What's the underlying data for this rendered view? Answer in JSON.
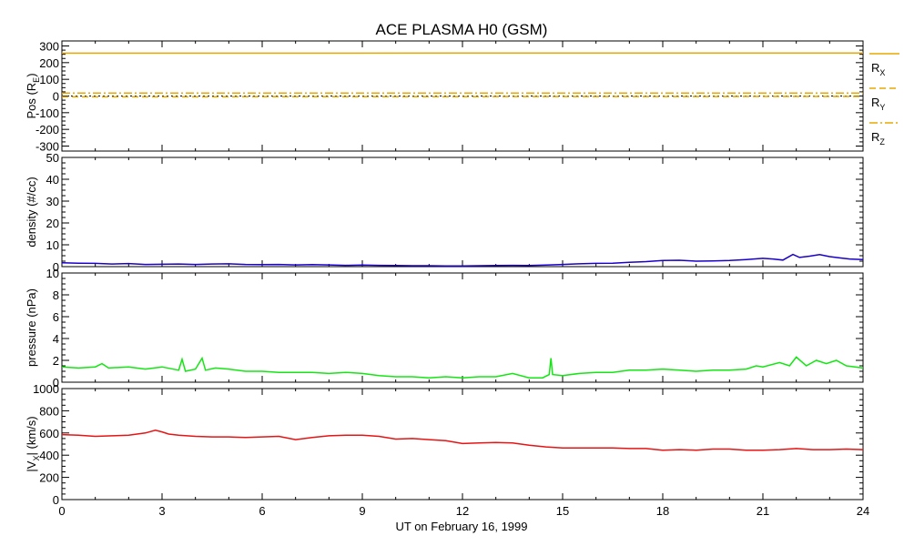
{
  "chart_data": {
    "title": "ACE PLASMA H0 (GSM)",
    "xlabel": "UT on February 16, 1999",
    "x_ticks": [
      "0",
      "3",
      "6",
      "9",
      "12",
      "15",
      "18",
      "21",
      "24"
    ],
    "xlim": [
      0,
      24
    ],
    "panels": [
      {
        "type": "line",
        "ylabel_main": "Pos (R",
        "ylabel_sub": "E",
        "ylabel_end": ")",
        "ylim": [
          -330,
          330
        ],
        "y_ticks": [
          "300",
          "200",
          "100",
          "0",
          "-100",
          "-200",
          "-300"
        ],
        "legend": [
          {
            "main": "R",
            "sub": "X",
            "style": "solid",
            "color": "#e8a800"
          },
          {
            "main": "R",
            "sub": "Y",
            "style": "dashed",
            "color": "#e8a800"
          },
          {
            "main": "R",
            "sub": "Z",
            "style": "dashdot",
            "color": "#e8a800"
          }
        ],
        "series": [
          {
            "name": "X",
            "color": "#e8a800",
            "style": "solid",
            "x": [
              0,
              24
            ],
            "y": [
              257,
              258
            ]
          },
          {
            "name": "Y",
            "color": "#e8a800",
            "style": "dashed",
            "x": [
              0,
              24
            ],
            "y": [
              -5,
              -3
            ]
          },
          {
            "name": "Z",
            "color": "#e8a800",
            "style": "dashdot",
            "x": [
              0,
              24
            ],
            "y": [
              18,
              18
            ]
          }
        ],
        "zero_line": true
      },
      {
        "type": "line",
        "ylabel_main": "density (#/cc)",
        "ylim": [
          0,
          50
        ],
        "y_ticks": [
          "50",
          "40",
          "30",
          "20",
          "10",
          "0"
        ],
        "series": [
          {
            "name": "density",
            "color": "#1a00c8",
            "x": [
              0,
              0.5,
              1,
              1.5,
              2,
              2.5,
              3,
              3.5,
              4,
              4.5,
              5,
              5.5,
              6,
              6.5,
              7,
              7.5,
              8,
              8.5,
              9,
              9.5,
              10,
              10.5,
              11,
              11.5,
              12,
              12.5,
              13,
              13.5,
              14,
              14.5,
              15,
              15.5,
              16,
              16.5,
              17,
              17.5,
              18,
              18.5,
              19,
              19.5,
              20,
              20.5,
              21,
              21.3,
              21.6,
              21.9,
              22.1,
              22.4,
              22.7,
              23,
              23.3,
              23.6,
              24
            ],
            "y": [
              1.8,
              1.6,
              1.5,
              1.2,
              1.4,
              1.0,
              1.1,
              1.2,
              1.0,
              1.2,
              1.3,
              1.0,
              0.9,
              1.0,
              0.8,
              0.9,
              0.8,
              0.6,
              0.7,
              0.6,
              0.5,
              0.4,
              0.4,
              0.3,
              0.3,
              0.4,
              0.5,
              0.6,
              0.5,
              0.7,
              1.0,
              1.3,
              1.5,
              1.6,
              2.0,
              2.3,
              2.8,
              2.9,
              2.5,
              2.6,
              2.8,
              3.2,
              3.8,
              3.5,
              3.0,
              5.6,
              4.2,
              4.8,
              5.5,
              4.6,
              4.0,
              3.5,
              3.2
            ]
          }
        ]
      },
      {
        "type": "line",
        "ylabel_main": "pressure (nPa)",
        "ylim": [
          0,
          10
        ],
        "y_ticks": [
          "10",
          "8",
          "6",
          "4",
          "2",
          "0"
        ],
        "series": [
          {
            "name": "pressure",
            "color": "#14e614",
            "x": [
              0,
              0.5,
              1,
              1.2,
              1.4,
              2,
              2.5,
              3,
              3.5,
              3.6,
              3.7,
              4,
              4.2,
              4.3,
              4.6,
              5,
              5.5,
              6,
              6.5,
              7,
              7.5,
              8,
              8.5,
              9,
              9.5,
              10,
              10.5,
              11,
              11.5,
              12,
              12.5,
              13,
              13.5,
              14,
              14.4,
              14.6,
              14.65,
              14.7,
              15,
              15.5,
              16,
              16.5,
              17,
              17.5,
              18,
              18.5,
              19,
              19.5,
              20,
              20.5,
              20.8,
              21,
              21.5,
              21.8,
              22,
              22.3,
              22.6,
              22.9,
              23.2,
              23.5,
              24
            ],
            "y": [
              1.4,
              1.3,
              1.4,
              1.7,
              1.3,
              1.4,
              1.2,
              1.4,
              1.1,
              2.1,
              1.0,
              1.2,
              2.2,
              1.1,
              1.3,
              1.2,
              1.0,
              1.0,
              0.9,
              0.9,
              0.9,
              0.8,
              0.9,
              0.8,
              0.6,
              0.5,
              0.5,
              0.4,
              0.5,
              0.4,
              0.5,
              0.5,
              0.8,
              0.4,
              0.4,
              0.7,
              2.2,
              0.7,
              0.6,
              0.8,
              0.9,
              0.9,
              1.1,
              1.1,
              1.2,
              1.1,
              1.0,
              1.1,
              1.1,
              1.2,
              1.5,
              1.4,
              1.8,
              1.5,
              2.3,
              1.5,
              2.0,
              1.7,
              2.0,
              1.5,
              1.3
            ]
          }
        ]
      },
      {
        "type": "line",
        "ylabel_main": "|V",
        "ylabel_sub": "X",
        "ylabel_end": "| (km/s)",
        "ylim": [
          0,
          1000
        ],
        "y_ticks": [
          "1000",
          "800",
          "600",
          "400",
          "200",
          "0"
        ],
        "series": [
          {
            "name": "Vx",
            "color": "#e61414",
            "x": [
              0,
              0.5,
              1,
              1.5,
              2,
              2.5,
              2.8,
              3,
              3.2,
              3.5,
              4,
              4.5,
              5,
              5.5,
              6,
              6.5,
              7,
              7.5,
              8,
              8.5,
              9,
              9.5,
              10,
              10.5,
              11,
              11.5,
              12,
              12.5,
              13,
              13.5,
              14,
              14.5,
              15,
              15.5,
              16,
              16.5,
              17,
              17.5,
              18,
              18.5,
              19,
              19.5,
              20,
              20.5,
              21,
              21.5,
              22,
              22.5,
              23,
              23.5,
              24
            ],
            "y": [
              585,
              580,
              570,
              575,
              580,
              600,
              625,
              610,
              590,
              580,
              570,
              565,
              565,
              560,
              565,
              570,
              540,
              560,
              575,
              580,
              580,
              570,
              545,
              550,
              540,
              530,
              505,
              510,
              515,
              510,
              490,
              475,
              465,
              465,
              465,
              465,
              460,
              460,
              445,
              450,
              445,
              455,
              455,
              445,
              445,
              450,
              460,
              450,
              450,
              455,
              450
            ]
          }
        ]
      }
    ]
  }
}
